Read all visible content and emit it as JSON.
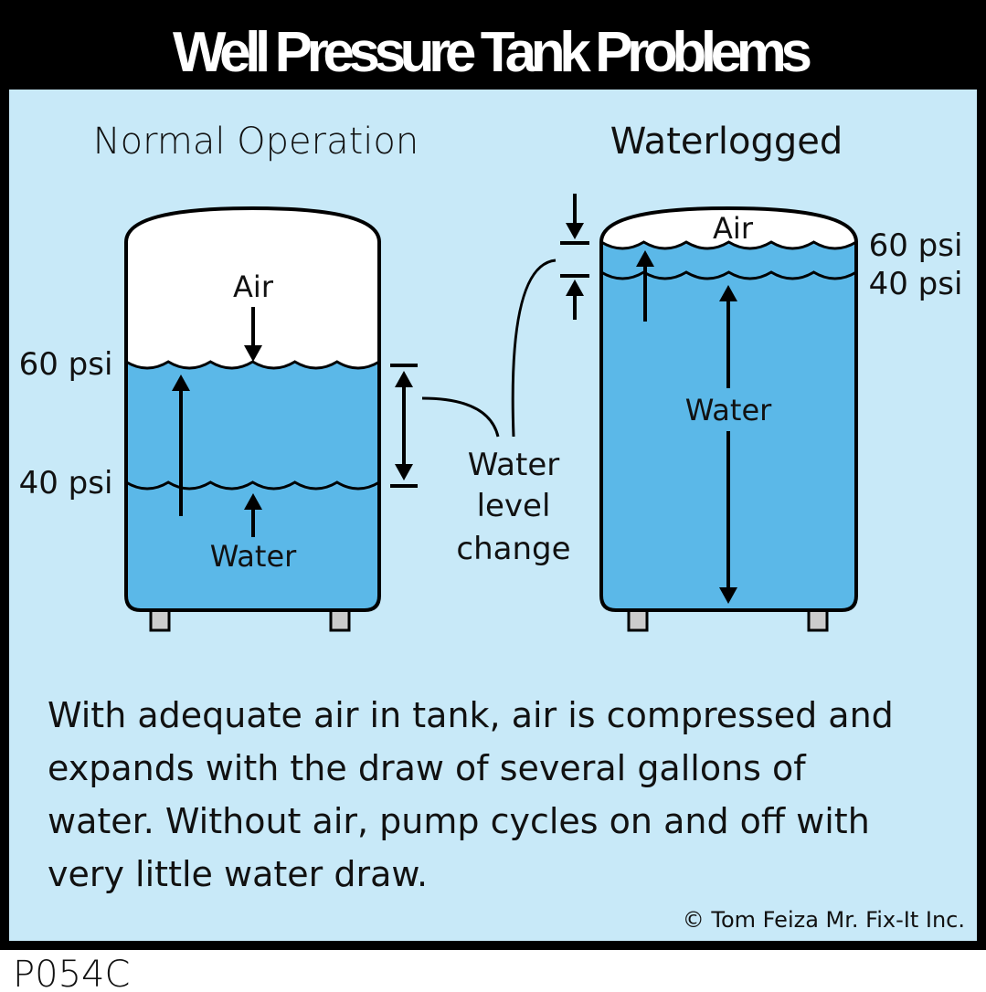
{
  "title": "Well Pressure Tank Problems",
  "normal": {
    "heading": "Normal Operation",
    "air": "Air",
    "water": "Water",
    "high": "60 psi",
    "low": "40 psi"
  },
  "waterlogged": {
    "heading": "Waterlogged",
    "air": "Air",
    "water": "Water",
    "high": "60 psi",
    "low": "40 psi"
  },
  "callout": {
    "line1": "Water",
    "line2": "level",
    "line3": "change"
  },
  "caption": [
    "With adequate air in tank, air is compressed and",
    "expands with the draw of several gallons of",
    "water.  Without air, pump cycles on and off with",
    "very little water draw."
  ],
  "copyright": "© Tom Feiza Mr. Fix-It Inc.",
  "code": "P054C",
  "colors": {
    "header": "#000000",
    "panel": "#c8e9f8",
    "water": "#5bb8e8",
    "air": "#ffffff"
  }
}
